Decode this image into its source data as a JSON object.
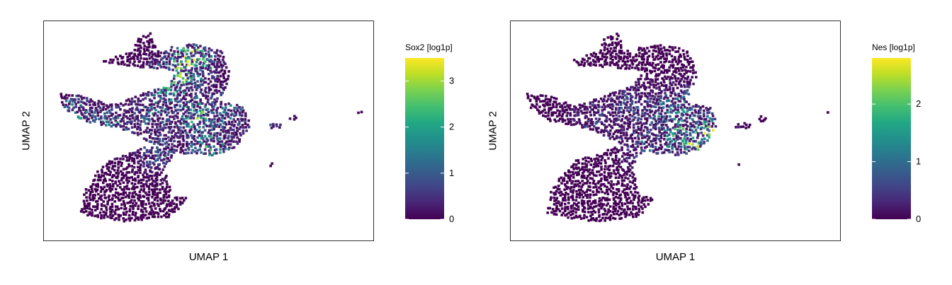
{
  "chart_data": [
    {
      "type": "scatter",
      "subtype": "umap-embedding",
      "xlabel": "UMAP 1",
      "ylabel": "UMAP 2",
      "colorbar": {
        "title": "Sox2 [log1p]",
        "range": [
          0,
          3.5
        ],
        "ticks": [
          0,
          1,
          2,
          3
        ],
        "tick_labels": [
          "0",
          "1",
          "2",
          "3"
        ],
        "colormap": "viridis"
      },
      "hotspots": [
        {
          "x": 0.44,
          "y": 0.82,
          "value": 3.4
        },
        {
          "x": 0.42,
          "y": 0.78,
          "value": 3.0
        },
        {
          "x": 0.38,
          "y": 0.72,
          "value": 2.6
        },
        {
          "x": 0.46,
          "y": 0.58,
          "value": 2.5
        },
        {
          "x": 0.5,
          "y": 0.43,
          "value": 2.3
        },
        {
          "x": 0.58,
          "y": 0.36,
          "value": 2.0
        },
        {
          "x": 0.1,
          "y": 0.58,
          "value": 1.8
        },
        {
          "x": 0.2,
          "y": 0.52,
          "value": 1.8
        },
        {
          "x": 0.33,
          "y": 0.6,
          "value": 1.6
        },
        {
          "x": 0.55,
          "y": 0.6,
          "value": 1.5
        },
        {
          "x": 0.66,
          "y": 0.5,
          "value": 1.0
        },
        {
          "x": 0.34,
          "y": 0.42,
          "value": 1.1
        }
      ]
    },
    {
      "type": "scatter",
      "subtype": "umap-embedding",
      "xlabel": "UMAP 1",
      "ylabel": "UMAP 2",
      "colorbar": {
        "title": "Nes [log1p]",
        "range": [
          0,
          2.8
        ],
        "ticks": [
          0,
          1,
          2
        ],
        "tick_labels": [
          "0",
          "1",
          "2"
        ],
        "colormap": "viridis"
      },
      "hotspots": [
        {
          "x": 0.6,
          "y": 0.47,
          "value": 2.8
        },
        {
          "x": 0.55,
          "y": 0.44,
          "value": 2.2
        },
        {
          "x": 0.5,
          "y": 0.5,
          "value": 1.8
        },
        {
          "x": 0.47,
          "y": 0.58,
          "value": 1.5
        },
        {
          "x": 0.52,
          "y": 0.6,
          "value": 1.4
        },
        {
          "x": 0.4,
          "y": 0.45,
          "value": 1.0
        },
        {
          "x": 0.58,
          "y": 0.36,
          "value": 1.0
        },
        {
          "x": 0.36,
          "y": 0.62,
          "value": 0.8
        },
        {
          "x": 0.25,
          "y": 0.55,
          "value": 0.6
        }
      ]
    }
  ]
}
